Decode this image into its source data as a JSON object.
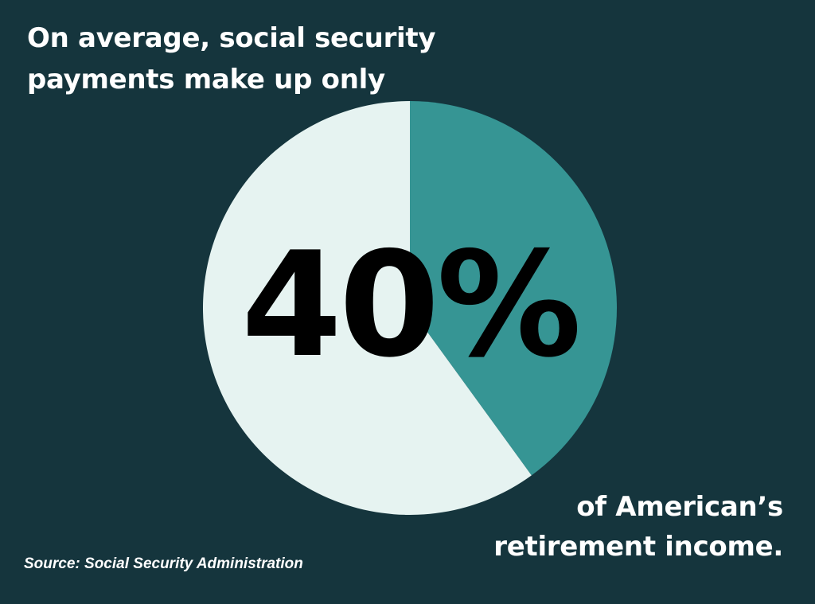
{
  "headline": {
    "line1": "On average, social security",
    "line2": "payments make up only"
  },
  "tail": {
    "line1": "of American’s",
    "line2": "retirement income."
  },
  "source": "Source: Social Security Administration",
  "colors": {
    "background": "#15353d",
    "highlight_slice": "#369594",
    "rest_slice": "#e6f3f1",
    "value_text": "#000000",
    "text": "#ffffff"
  },
  "chart_data": {
    "type": "pie",
    "center_label": "40%",
    "slices": [
      {
        "value": 40,
        "color": "#369594"
      },
      {
        "value": 60,
        "color": "#e6f3f1"
      }
    ]
  }
}
